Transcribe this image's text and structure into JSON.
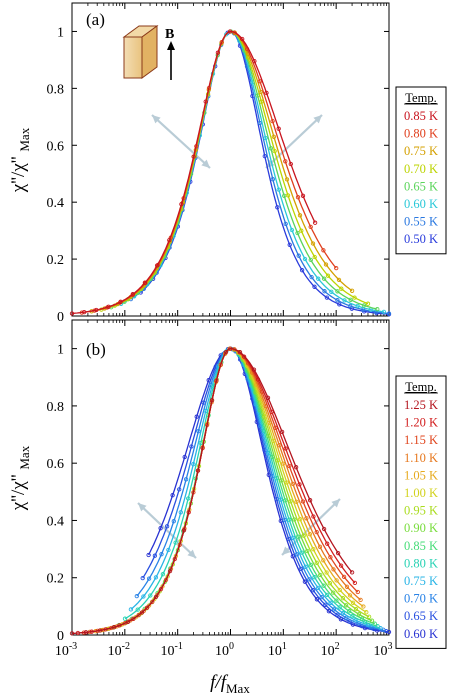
{
  "chart_data": [
    {
      "panel_label": "(a)",
      "type": "line",
      "x_scale": "log",
      "xlim": [
        0.001,
        1000
      ],
      "ylim": [
        0,
        1.1
      ],
      "yticks": [
        0,
        0.2,
        0.4,
        0.6,
        0.8,
        1
      ],
      "ylabel": "χ''/χ''Max",
      "inset_label": "B",
      "legend_title": "Temp.",
      "legend_position": "right",
      "series": [
        {
          "name": "0.85 K",
          "color": "#c8141e",
          "x_end": 40
        },
        {
          "name": "0.80 K",
          "color": "#e0401e",
          "x_end": 100
        },
        {
          "name": "0.75 K",
          "color": "#d4a000",
          "x_end": 200
        },
        {
          "name": "0.70 K",
          "color": "#bcd400",
          "x_end": 400
        },
        {
          "name": "0.65 K",
          "color": "#5ad45a",
          "x_end": 600
        },
        {
          "name": "0.60 K",
          "color": "#2ac8d8",
          "x_end": 800
        },
        {
          "name": "0.55 K",
          "color": "#2a78e0",
          "x_end": 1000
        },
        {
          "name": "0.50 K",
          "color": "#2a3cdc",
          "x_end": 1000
        }
      ]
    },
    {
      "panel_label": "(b)",
      "type": "line",
      "x_scale": "log",
      "xlim": [
        0.001,
        1000
      ],
      "ylim": [
        0,
        1.1
      ],
      "yticks": [
        0,
        0.2,
        0.4,
        0.6,
        0.8,
        1
      ],
      "xticks": [
        "10-3",
        "10-2",
        "10-1",
        "100",
        "101",
        "102",
        "103"
      ],
      "xlabel": "f/fMax",
      "ylabel": "χ''/χ''Max",
      "legend_title": "Temp.",
      "legend_position": "right",
      "series": [
        {
          "name": "1.25 K",
          "color": "#b4141e"
        },
        {
          "name": "1.20 K",
          "color": "#d21e1e"
        },
        {
          "name": "1.15 K",
          "color": "#e0461e"
        },
        {
          "name": "1.10 K",
          "color": "#e6781e"
        },
        {
          "name": "1.05 K",
          "color": "#e6aa1e"
        },
        {
          "name": "1.00 K",
          "color": "#d2d21e"
        },
        {
          "name": "0.95 K",
          "color": "#aadc1e"
        },
        {
          "name": "0.90 K",
          "color": "#78dc3c"
        },
        {
          "name": "0.85 K",
          "color": "#46dc78"
        },
        {
          "name": "0.80 K",
          "color": "#28d2b4"
        },
        {
          "name": "0.75 K",
          "color": "#28b4e6"
        },
        {
          "name": "0.70 K",
          "color": "#2882e6"
        },
        {
          "name": "0.65 K",
          "color": "#2850e0"
        },
        {
          "name": "0.60 K",
          "color": "#2832d2"
        }
      ]
    }
  ]
}
